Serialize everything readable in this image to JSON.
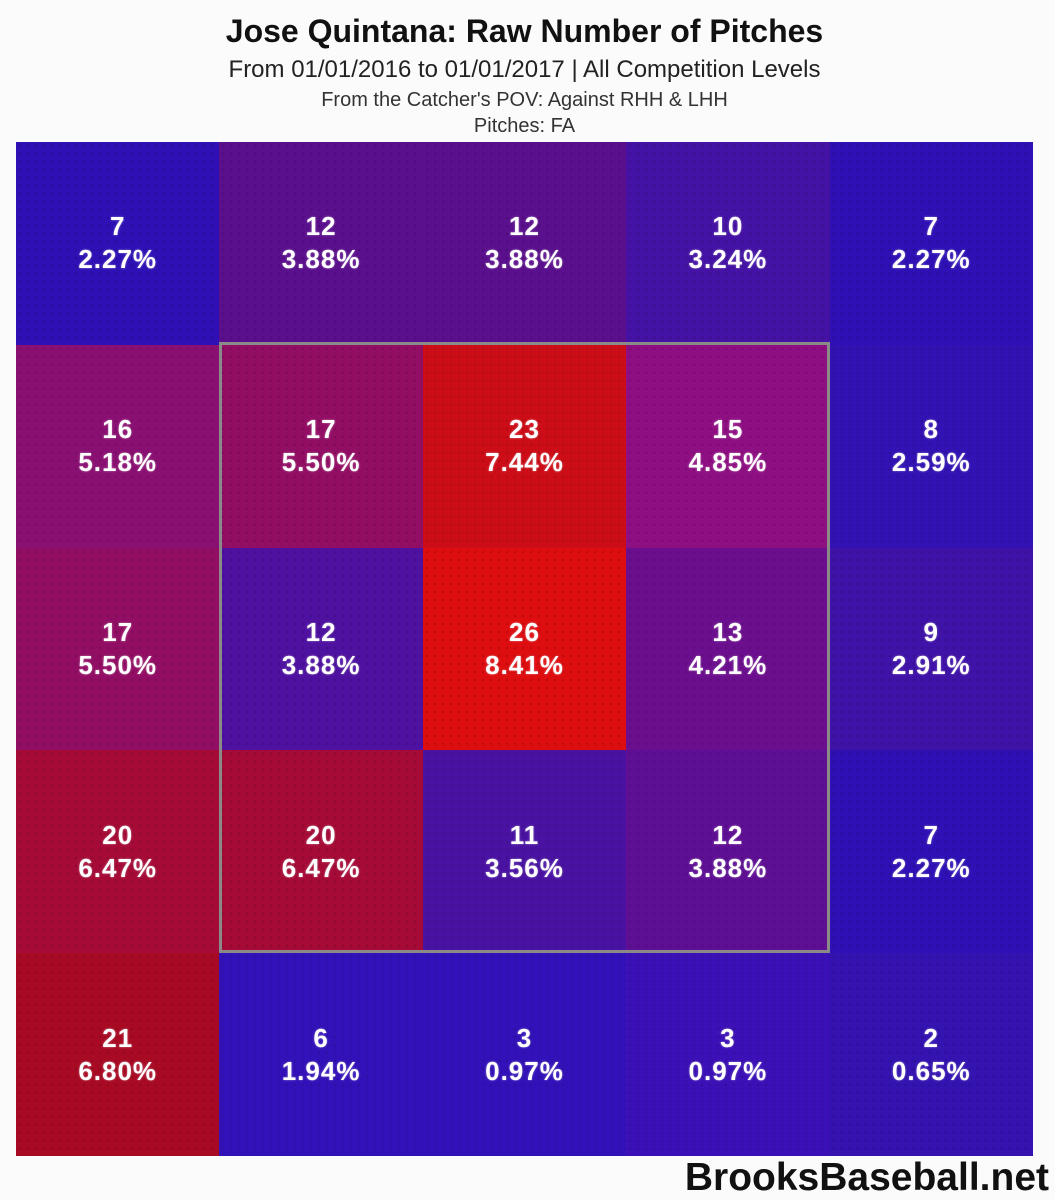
{
  "chart_data": {
    "type": "heatmap",
    "title": "Jose Quintana: Raw Number of Pitches",
    "subtitle": "From 01/01/2016 to 01/01/2017 | All Competition Levels",
    "pov_line": "From the Catcher's POV:   Against RHH & LHH",
    "pitches_line": "Pitches:  FA",
    "grid_rows": 5,
    "grid_cols": 5,
    "orientation": "catcher-pov",
    "cell_value_format": "count over percent",
    "cells": [
      [
        {
          "count": "7",
          "pct": "2.27%",
          "color": "#2f10b4"
        },
        {
          "count": "12",
          "pct": "3.88%",
          "color": "#5a0f8c"
        },
        {
          "count": "12",
          "pct": "3.88%",
          "color": "#5a0f8c"
        },
        {
          "count": "10",
          "pct": "3.24%",
          "color": "#4412a4"
        },
        {
          "count": "7",
          "pct": "2.27%",
          "color": "#2f10b4"
        }
      ],
      [
        {
          "count": "16",
          "pct": "5.18%",
          "color": "#8a0f72"
        },
        {
          "count": "17",
          "pct": "5.50%",
          "color": "#920e64"
        },
        {
          "count": "23",
          "pct": "7.44%",
          "color": "#cc0d17"
        },
        {
          "count": "15",
          "pct": "4.85%",
          "color": "#8e0f82"
        },
        {
          "count": "8",
          "pct": "2.59%",
          "color": "#3212b2"
        }
      ],
      [
        {
          "count": "17",
          "pct": "5.50%",
          "color": "#920e64"
        },
        {
          "count": "12",
          "pct": "3.88%",
          "color": "#4e11a0"
        },
        {
          "count": "26",
          "pct": "8.41%",
          "color": "#dd0d10"
        },
        {
          "count": "13",
          "pct": "4.21%",
          "color": "#6c0f8e"
        },
        {
          "count": "9",
          "pct": "2.91%",
          "color": "#3f12a8"
        }
      ],
      [
        {
          "count": "20",
          "pct": "6.47%",
          "color": "#a50b36"
        },
        {
          "count": "20",
          "pct": "6.47%",
          "color": "#a50b36"
        },
        {
          "count": "11",
          "pct": "3.56%",
          "color": "#4912a2"
        },
        {
          "count": "12",
          "pct": "3.88%",
          "color": "#5e0f94"
        },
        {
          "count": "7",
          "pct": "2.27%",
          "color": "#2f10b4"
        }
      ],
      [
        {
          "count": "21",
          "pct": "6.80%",
          "color": "#a80a24"
        },
        {
          "count": "6",
          "pct": "1.94%",
          "color": "#3311b8"
        },
        {
          "count": "3",
          "pct": "0.97%",
          "color": "#3311b8"
        },
        {
          "count": "3",
          "pct": "0.97%",
          "color": "#3b10b6"
        },
        {
          "count": "2",
          "pct": "0.65%",
          "color": "#3413b0"
        }
      ]
    ],
    "strike_zone": {
      "col_start": 2,
      "col_end": 4,
      "row_start": 2,
      "row_end": 4,
      "border_color": "#8a8a88"
    },
    "legend_position": "none",
    "grid_lines": "off",
    "watermark": "BrooksBaseball.net"
  }
}
